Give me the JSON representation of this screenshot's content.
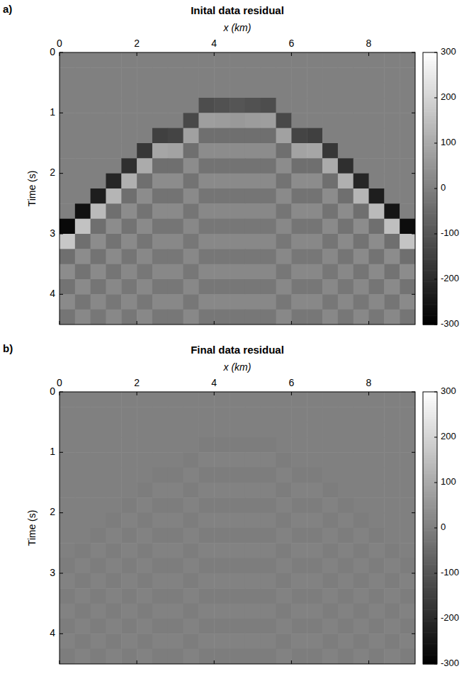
{
  "chart_data": [
    {
      "type": "heatmap",
      "panel_label": "a)",
      "title": "Inital data residual",
      "x_label": "x (km)",
      "y_label": "Time (s)",
      "xlim": [
        0,
        9.2
      ],
      "ylim": [
        0,
        4.5
      ],
      "xticks": [
        0,
        2,
        4,
        6,
        8
      ],
      "yticks": [
        0,
        1,
        2,
        3,
        4
      ],
      "x_bins": [
        0,
        0.4,
        0.8,
        1.2,
        1.6,
        2,
        2.4,
        2.8,
        3.2,
        3.6,
        4,
        4.4,
        4.8,
        5.2,
        5.6,
        6,
        6.4,
        6.8,
        7.2,
        7.6,
        8,
        8.4,
        8.8,
        9.2
      ],
      "y_bins": [
        0,
        0.25,
        0.5,
        0.75,
        1,
        1.25,
        1.5,
        1.75,
        2,
        2.25,
        2.5,
        2.75,
        3,
        3.25,
        3.5,
        3.75,
        4,
        4.25,
        4.5
      ],
      "cells": [
        [
          0,
          0,
          0,
          0,
          0,
          0,
          0,
          0,
          0,
          0,
          0,
          0,
          0,
          0,
          0,
          0,
          0,
          0,
          0,
          0,
          0,
          0,
          0
        ],
        [
          0,
          0,
          0,
          0,
          0,
          0,
          0,
          0,
          0,
          0,
          0,
          0,
          0,
          0,
          0,
          0,
          0,
          0,
          0,
          0,
          0,
          0,
          0
        ],
        [
          0,
          0,
          0,
          0,
          0,
          0,
          0,
          0,
          0,
          0,
          0,
          0,
          0,
          0,
          0,
          0,
          0,
          0,
          0,
          0,
          0,
          0,
          0
        ],
        [
          0,
          0,
          0,
          0,
          0,
          0,
          0,
          0,
          0,
          -120,
          -110,
          -100,
          -110,
          -120,
          0,
          0,
          0,
          0,
          0,
          0,
          0,
          0,
          0
        ],
        [
          0,
          0,
          0,
          0,
          0,
          0,
          0,
          0,
          -130,
          72,
          66,
          60,
          66,
          72,
          -130,
          0,
          0,
          0,
          0,
          0,
          0,
          0,
          0
        ],
        [
          0,
          0,
          0,
          0,
          0,
          0,
          -150,
          -140,
          78,
          -40,
          -40,
          -40,
          -40,
          -40,
          78,
          -140,
          -150,
          0,
          0,
          0,
          0,
          0,
          0
        ],
        [
          0,
          0,
          0,
          0,
          0,
          -170,
          90,
          84,
          -40,
          30,
          30,
          30,
          30,
          30,
          -40,
          84,
          90,
          -170,
          0,
          0,
          0,
          0,
          0
        ],
        [
          0,
          0,
          0,
          0,
          -190,
          102,
          -40,
          -40,
          30,
          -30,
          -30,
          -30,
          -30,
          -30,
          30,
          -40,
          -40,
          102,
          -190,
          0,
          0,
          0,
          0
        ],
        [
          0,
          0,
          0,
          -210,
          114,
          -40,
          30,
          30,
          -30,
          25,
          25,
          25,
          25,
          25,
          -30,
          30,
          30,
          -40,
          114,
          -210,
          0,
          0,
          0
        ],
        [
          0,
          0,
          -230,
          126,
          -40,
          30,
          -30,
          -30,
          25,
          -25,
          -25,
          -25,
          -25,
          -25,
          25,
          -30,
          -30,
          30,
          -40,
          126,
          -230,
          0,
          0
        ],
        [
          0,
          -260,
          138,
          -40,
          30,
          -30,
          25,
          25,
          -25,
          20,
          20,
          20,
          20,
          20,
          -25,
          25,
          25,
          -30,
          30,
          -40,
          138,
          -250,
          0
        ],
        [
          -280,
          156,
          -40,
          30,
          -30,
          25,
          -25,
          -25,
          20,
          -20,
          -20,
          -20,
          -20,
          -20,
          20,
          -25,
          -25,
          25,
          -30,
          30,
          -40,
          150,
          -270
        ],
        [
          168,
          -40,
          30,
          -30,
          25,
          -25,
          20,
          20,
          -20,
          20,
          20,
          20,
          20,
          20,
          -20,
          20,
          20,
          -25,
          25,
          -30,
          30,
          -40,
          162
        ],
        [
          -40,
          30,
          -30,
          25,
          -25,
          20,
          -20,
          -20,
          20,
          -20,
          -20,
          -20,
          -20,
          -20,
          20,
          -20,
          -20,
          20,
          -25,
          25,
          -30,
          30,
          -40
        ],
        [
          30,
          -30,
          25,
          -25,
          20,
          -20,
          20,
          20,
          -20,
          20,
          20,
          20,
          20,
          20,
          -20,
          20,
          20,
          -20,
          20,
          -25,
          25,
          -30,
          30
        ],
        [
          -30,
          25,
          -25,
          20,
          -20,
          20,
          -20,
          -20,
          20,
          -20,
          -20,
          -20,
          -20,
          -20,
          20,
          -20,
          -20,
          20,
          -20,
          20,
          -25,
          25,
          -30
        ],
        [
          25,
          -25,
          20,
          -20,
          20,
          -20,
          20,
          20,
          -20,
          20,
          20,
          20,
          20,
          20,
          -20,
          20,
          20,
          -20,
          20,
          -20,
          20,
          -25,
          25
        ],
        [
          -25,
          20,
          -20,
          20,
          -20,
          20,
          -20,
          -20,
          20,
          -20,
          -20,
          -20,
          -20,
          -20,
          20,
          -20,
          -20,
          20,
          -20,
          20,
          -20,
          20,
          -25
        ]
      ],
      "color_range": [
        -300,
        300
      ],
      "color_ticks": [
        -300,
        -200,
        -100,
        0,
        100,
        200,
        300
      ]
    },
    {
      "type": "heatmap",
      "panel_label": "b)",
      "title": "Final data residual",
      "x_label": "x (km)",
      "y_label": "Time (s)",
      "xlim": [
        0,
        9.2
      ],
      "ylim": [
        0,
        4.5
      ],
      "xticks": [
        0,
        2,
        4,
        6,
        8
      ],
      "yticks": [
        0,
        1,
        2,
        3,
        4
      ],
      "x_bins": [
        0,
        0.4,
        0.8,
        1.2,
        1.6,
        2,
        2.4,
        2.8,
        3.2,
        3.6,
        4,
        4.4,
        4.8,
        5.2,
        5.6,
        6,
        6.4,
        6.8,
        7.2,
        7.6,
        8,
        8.4,
        8.8,
        9.2
      ],
      "y_bins": [
        0,
        0.25,
        0.5,
        0.75,
        1,
        1.25,
        1.5,
        1.75,
        2,
        2.25,
        2.5,
        2.75,
        3,
        3.25,
        3.5,
        3.75,
        4,
        4.25,
        4.5
      ],
      "cells": [
        [
          0,
          0,
          0,
          0,
          0,
          0,
          0,
          0,
          0,
          0,
          0,
          0,
          0,
          0,
          0,
          0,
          0,
          0,
          0,
          0,
          0,
          0,
          0
        ],
        [
          0,
          0,
          0,
          0,
          0,
          0,
          0,
          0,
          0,
          0,
          0,
          0,
          0,
          0,
          0,
          0,
          0,
          0,
          0,
          0,
          0,
          0,
          0
        ],
        [
          0,
          0,
          0,
          0,
          0,
          0,
          0,
          0,
          0,
          0,
          0,
          0,
          0,
          0,
          0,
          0,
          0,
          0,
          0,
          0,
          0,
          0,
          0
        ],
        [
          0,
          0,
          0,
          0,
          0,
          0,
          0,
          0,
          0,
          -6,
          -6,
          -6,
          -6,
          -6,
          0,
          0,
          0,
          0,
          0,
          0,
          0,
          0,
          0
        ],
        [
          0,
          0,
          0,
          0,
          0,
          0,
          0,
          0,
          -6,
          6,
          6,
          6,
          6,
          6,
          -6,
          0,
          0,
          0,
          0,
          0,
          0,
          0,
          0
        ],
        [
          0,
          0,
          0,
          0,
          0,
          0,
          -6,
          -6,
          6,
          -6,
          -6,
          -6,
          -6,
          -6,
          6,
          -6,
          -6,
          0,
          0,
          0,
          0,
          0,
          0
        ],
        [
          0,
          0,
          0,
          0,
          0,
          -6,
          6,
          6,
          -6,
          6,
          6,
          6,
          6,
          6,
          -6,
          6,
          6,
          -6,
          0,
          0,
          0,
          0,
          0
        ],
        [
          0,
          0,
          0,
          0,
          -6,
          6,
          -6,
          -6,
          6,
          -6,
          -6,
          -6,
          -6,
          -6,
          6,
          -6,
          -6,
          6,
          -6,
          0,
          0,
          0,
          0
        ],
        [
          0,
          0,
          0,
          -6,
          6,
          -6,
          6,
          6,
          -6,
          6,
          6,
          6,
          6,
          6,
          -6,
          6,
          6,
          -6,
          6,
          -6,
          0,
          0,
          0
        ],
        [
          0,
          0,
          -6,
          6,
          -6,
          6,
          -6,
          -6,
          6,
          -6,
          -6,
          -6,
          -6,
          -6,
          6,
          -6,
          -6,
          6,
          -6,
          6,
          -6,
          0,
          0
        ],
        [
          0,
          -6,
          6,
          -6,
          6,
          -6,
          6,
          6,
          -6,
          6,
          6,
          6,
          6,
          6,
          -6,
          6,
          6,
          -6,
          6,
          -6,
          6,
          -6,
          0
        ],
        [
          -6,
          6,
          -6,
          6,
          -6,
          6,
          -6,
          -6,
          6,
          -6,
          -6,
          -6,
          -6,
          -6,
          6,
          -6,
          -6,
          6,
          -6,
          6,
          -6,
          6,
          -6
        ],
        [
          6,
          -6,
          6,
          -6,
          6,
          -6,
          6,
          6,
          -6,
          6,
          6,
          6,
          6,
          6,
          -6,
          6,
          6,
          -6,
          6,
          -6,
          6,
          -6,
          6
        ],
        [
          -6,
          6,
          -6,
          6,
          -6,
          6,
          -6,
          -6,
          6,
          -6,
          -6,
          -6,
          -6,
          -6,
          6,
          -6,
          -6,
          6,
          -6,
          6,
          -6,
          6,
          -6
        ],
        [
          6,
          -6,
          6,
          -6,
          6,
          -6,
          6,
          6,
          -6,
          6,
          6,
          6,
          6,
          6,
          -6,
          6,
          6,
          -6,
          6,
          -6,
          6,
          -6,
          6
        ],
        [
          -6,
          6,
          -6,
          6,
          -6,
          6,
          -6,
          -6,
          6,
          -6,
          -6,
          -6,
          -6,
          -6,
          6,
          -6,
          -6,
          6,
          -6,
          6,
          -6,
          6,
          -6
        ],
        [
          6,
          -6,
          6,
          -6,
          6,
          -6,
          6,
          6,
          -6,
          6,
          6,
          6,
          6,
          6,
          -6,
          6,
          6,
          -6,
          6,
          -6,
          6,
          -6,
          6
        ],
        [
          -6,
          6,
          -6,
          6,
          -6,
          6,
          -6,
          -6,
          6,
          -6,
          -6,
          -6,
          -6,
          -6,
          6,
          -6,
          -6,
          6,
          -6,
          6,
          -6,
          6,
          -6
        ]
      ],
      "color_range": [
        -300,
        300
      ],
      "color_ticks": [
        -300,
        -200,
        -100,
        0,
        100,
        200,
        300
      ]
    }
  ]
}
